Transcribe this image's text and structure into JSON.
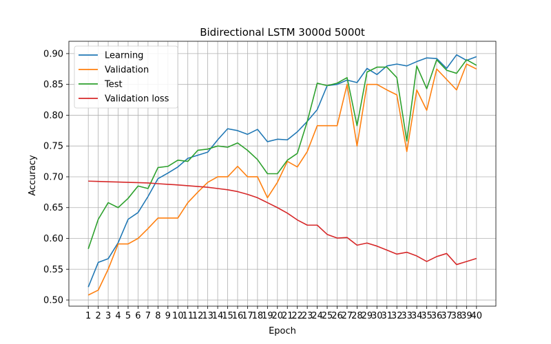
{
  "chart_data": {
    "type": "line",
    "title": "Bidirectional LSTM 3000d 5000t",
    "xlabel": "Epoch",
    "ylabel": "Accuracy",
    "x": [
      1,
      2,
      3,
      4,
      5,
      6,
      7,
      8,
      9,
      10,
      11,
      12,
      13,
      14,
      15,
      16,
      17,
      18,
      19,
      20,
      21,
      22,
      23,
      24,
      25,
      26,
      27,
      28,
      29,
      30,
      31,
      32,
      33,
      34,
      35,
      36,
      37,
      38,
      39,
      40
    ],
    "ylim": [
      0.49,
      0.92
    ],
    "yticks": [
      0.5,
      0.55,
      0.6,
      0.65,
      0.7,
      0.75,
      0.8,
      0.85,
      0.9
    ],
    "grid": true,
    "legend_position": "top-left",
    "series": [
      {
        "name": "Learning",
        "color": "#1f77b4",
        "values": [
          0.521,
          0.561,
          0.567,
          0.593,
          0.631,
          0.642,
          0.668,
          0.697,
          0.706,
          0.716,
          0.73,
          0.735,
          0.74,
          0.76,
          0.778,
          0.775,
          0.769,
          0.777,
          0.757,
          0.761,
          0.76,
          0.773,
          0.79,
          0.809,
          0.848,
          0.85,
          0.857,
          0.853,
          0.876,
          0.866,
          0.88,
          0.883,
          0.88,
          0.887,
          0.893,
          0.892,
          0.876,
          0.898,
          0.889,
          0.895
        ]
      },
      {
        "name": "Validation",
        "color": "#ff7f0e",
        "values": [
          0.508,
          0.516,
          0.55,
          0.591,
          0.591,
          0.6,
          0.616,
          0.633,
          0.633,
          0.633,
          0.658,
          0.675,
          0.691,
          0.7,
          0.7,
          0.717,
          0.7,
          0.7,
          0.666,
          0.691,
          0.725,
          0.716,
          0.741,
          0.783,
          0.783,
          0.783,
          0.85,
          0.75,
          0.85,
          0.85,
          0.841,
          0.833,
          0.741,
          0.841,
          0.808,
          0.875,
          0.858,
          0.841,
          0.883,
          0.875
        ]
      },
      {
        "name": "Test",
        "color": "#2ca02c",
        "values": [
          0.583,
          0.631,
          0.658,
          0.65,
          0.665,
          0.685,
          0.681,
          0.715,
          0.717,
          0.727,
          0.725,
          0.743,
          0.745,
          0.75,
          0.748,
          0.755,
          0.743,
          0.728,
          0.705,
          0.705,
          0.727,
          0.738,
          0.79,
          0.852,
          0.848,
          0.852,
          0.861,
          0.783,
          0.87,
          0.878,
          0.878,
          0.861,
          0.758,
          0.88,
          0.843,
          0.89,
          0.873,
          0.868,
          0.89,
          0.881
        ]
      },
      {
        "name": "Validation loss",
        "color": "#d62728",
        "values": [
          0.693,
          0.6925,
          0.692,
          0.6915,
          0.691,
          0.6905,
          0.69,
          0.6888,
          0.6878,
          0.6868,
          0.6855,
          0.6843,
          0.683,
          0.681,
          0.679,
          0.676,
          0.6715,
          0.666,
          0.658,
          0.65,
          0.641,
          0.63,
          0.6215,
          0.6215,
          0.6065,
          0.6005,
          0.6015,
          0.589,
          0.5925,
          0.5875,
          0.581,
          0.5745,
          0.5775,
          0.5715,
          0.5625,
          0.5705,
          0.5755,
          0.5575,
          0.5625,
          0.5675
        ]
      }
    ]
  }
}
